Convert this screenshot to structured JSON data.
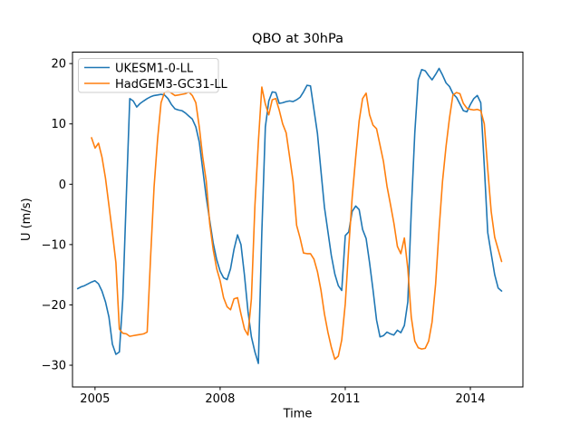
{
  "figure": {
    "background": "#ffffff",
    "spine_color": "#000000"
  },
  "chart_data": {
    "type": "line",
    "title": "QBO at 30hPa",
    "xlabel": "Time",
    "ylabel": "U (m/s)",
    "xlim": [
      2004.46,
      2015.26
    ],
    "ylim": [
      -33.6,
      21.9
    ],
    "xticks": [
      2005,
      2008,
      2011,
      2014
    ],
    "xtick_labels": [
      "2005",
      "2008",
      "2011",
      "2014"
    ],
    "yticks": [
      20,
      10,
      0,
      -10,
      -20,
      -30
    ],
    "ytick_labels": [
      "20",
      "10",
      "0",
      "−10",
      "−20",
      "−30"
    ],
    "grid": false,
    "legend_position": "upper-left",
    "series": [
      {
        "name": "UKESM1-0-LL",
        "color": "#1f77b4",
        "start_year": 2004.5833,
        "step_years": 0.0833333,
        "values": [
          -17.3,
          -17.0,
          -16.8,
          -16.5,
          -16.2,
          -16.0,
          -16.5,
          -17.7,
          -19.5,
          -22.0,
          -26.5,
          -28.2,
          -27.8,
          -19.0,
          -2.0,
          14.2,
          13.8,
          12.8,
          13.4,
          13.8,
          14.2,
          14.5,
          14.7,
          14.8,
          14.9,
          14.8,
          14.2,
          13.2,
          12.5,
          12.3,
          12.2,
          11.8,
          11.3,
          10.8,
          9.5,
          7.0,
          2.5,
          -2.2,
          -6.0,
          -9.7,
          -12.5,
          -14.4,
          -15.5,
          -15.8,
          -14.0,
          -10.8,
          -8.4,
          -10.0,
          -15.0,
          -21.0,
          -25.3,
          -27.8,
          -29.7,
          -8.0,
          9.5,
          13.8,
          15.3,
          15.2,
          13.4,
          13.5,
          13.7,
          13.8,
          13.7,
          14.0,
          14.4,
          15.3,
          16.4,
          16.3,
          12.4,
          8.4,
          2.3,
          -3.8,
          -7.8,
          -11.8,
          -14.9,
          -16.8,
          -17.6,
          -8.5,
          -7.9,
          -4.5,
          -3.6,
          -4.2,
          -7.5,
          -9.0,
          -13.0,
          -17.5,
          -22.5,
          -25.3,
          -25.1,
          -24.5,
          -24.8,
          -25.0,
          -24.2,
          -24.6,
          -23.4,
          -19.5,
          -4.5,
          8.5,
          17.3,
          19.0,
          18.8,
          18.0,
          17.3,
          18.2,
          19.2,
          18.1,
          16.8,
          16.2,
          15.0,
          14.4,
          13.3,
          12.2,
          12.0,
          13.2,
          14.2,
          14.7,
          13.5,
          3.0,
          -8.0,
          -11.5,
          -15.0,
          -17.2,
          -17.7
        ]
      },
      {
        "name": "HadGEM3-GC31-LL",
        "color": "#ff7f0e",
        "start_year": 2004.9167,
        "step_years": 0.0833333,
        "values": [
          7.7,
          6.0,
          6.8,
          4.5,
          1.0,
          -3.5,
          -8.0,
          -13.0,
          -24.0,
          -24.7,
          -24.8,
          -25.2,
          -25.1,
          -25.0,
          -24.9,
          -24.8,
          -24.5,
          -12.0,
          -0.5,
          7.5,
          13.5,
          15.2,
          15.5,
          15.1,
          14.7,
          14.8,
          14.9,
          15.0,
          15.3,
          14.7,
          13.5,
          9.5,
          4.5,
          0.5,
          -6.5,
          -10.8,
          -14.0,
          -16.0,
          -18.8,
          -20.3,
          -20.8,
          -19.0,
          -18.8,
          -21.5,
          -24.0,
          -25.0,
          -19.0,
          -3.5,
          7.0,
          16.1,
          13.3,
          11.5,
          14.0,
          14.2,
          12.3,
          10.0,
          8.5,
          4.5,
          0.5,
          -6.8,
          -8.9,
          -11.4,
          -11.5,
          -11.5,
          -12.4,
          -14.5,
          -17.5,
          -21.5,
          -24.5,
          -27.0,
          -29.0,
          -28.5,
          -25.8,
          -19.8,
          -10.5,
          -2.2,
          4.5,
          10.5,
          14.2,
          15.1,
          11.5,
          9.8,
          9.2,
          6.5,
          3.8,
          -0.3,
          -3.3,
          -6.5,
          -10.3,
          -11.5,
          -8.9,
          -14.0,
          -22.0,
          -26.0,
          -27.1,
          -27.3,
          -27.2,
          -26.0,
          -22.8,
          -16.5,
          -7.5,
          0.5,
          6.3,
          11.0,
          14.8,
          15.2,
          15.0,
          13.4,
          12.6,
          12.4,
          12.3,
          12.4,
          12.2,
          10.0,
          2.5,
          -4.5,
          -8.8,
          -10.8,
          -12.8
        ]
      }
    ]
  }
}
